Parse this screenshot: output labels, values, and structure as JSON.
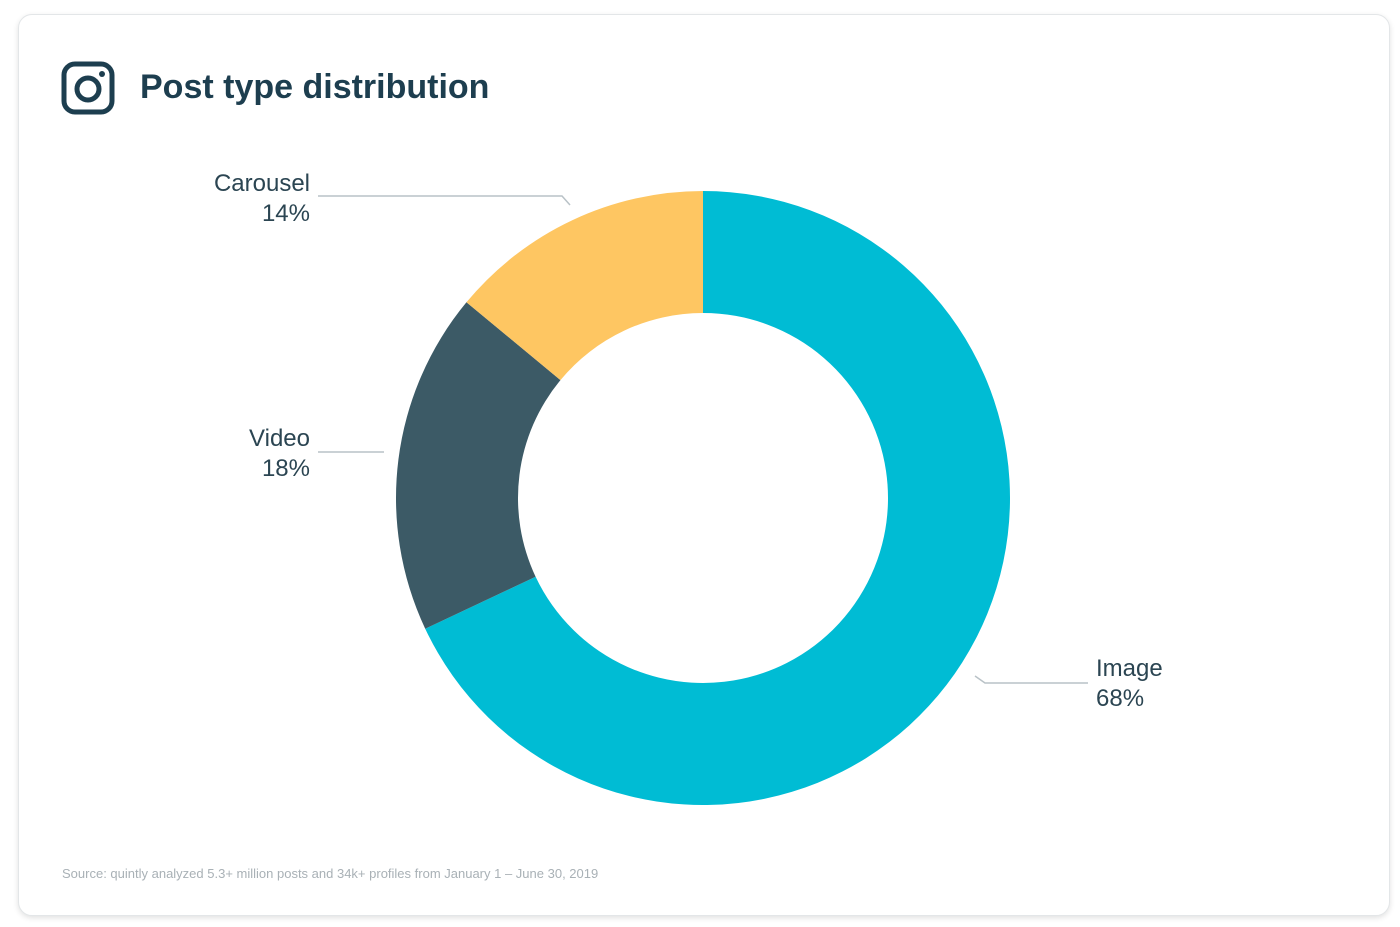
{
  "header": {
    "title": "Post type distribution",
    "icon": "instagram-icon"
  },
  "chart_data": {
    "type": "pie",
    "style": "donut",
    "title": "Post type distribution",
    "categories": [
      "Image",
      "Video",
      "Carousel"
    ],
    "values": [
      68,
      18,
      14
    ],
    "value_labels": [
      "68%",
      "18%",
      "14%"
    ],
    "colors": [
      "#00bcd4",
      "#3c5a66",
      "#fec662"
    ],
    "start": "top, clockwise"
  },
  "footer": {
    "source": "Source: quintly analyzed 5.3+ million posts and 34k+ profiles from January 1 – June 30, 2019"
  }
}
